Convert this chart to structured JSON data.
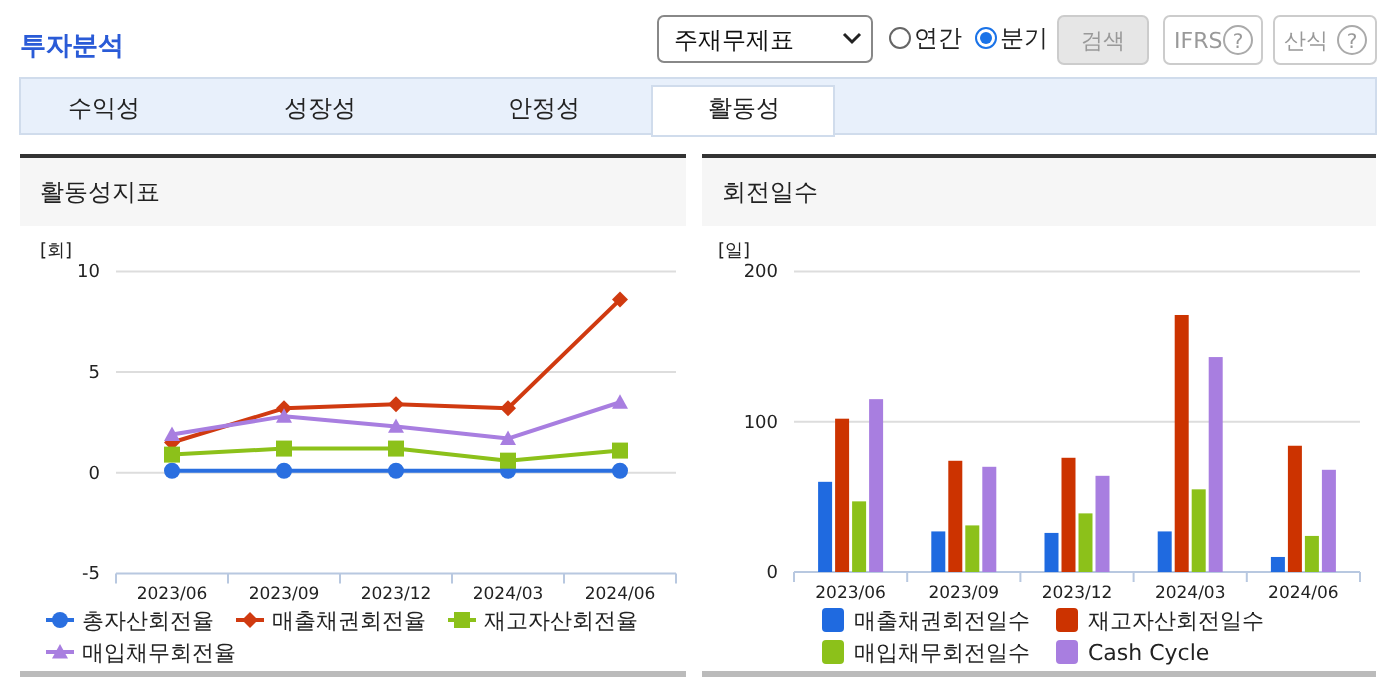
{
  "chart_data": [
    {
      "type": "line",
      "title": "활동성지표",
      "ylabel": "[회]",
      "categories": [
        "2023/06",
        "2023/09",
        "2023/12",
        "2024/03",
        "2024/06"
      ],
      "ylim": [
        -5,
        10
      ],
      "yticks": [
        -5,
        0,
        5,
        10
      ],
      "grid": "y",
      "legend": "bottom",
      "line_style": "solid",
      "annotations": [
        "투자분석",
        "주재무제표",
        "연간",
        "분기",
        "검색",
        "IFRS",
        "산식",
        "수익성",
        "성장성",
        "안정성",
        "활동성",
        "?",
        "?"
      ],
      "series": [
        {
          "name": "총자산회전율",
          "color": "#2a6fe0",
          "marker": "circle",
          "values": [
            0.1,
            0.1,
            0.1,
            0.1,
            0.1
          ]
        },
        {
          "name": "매출채권회전율",
          "color": "#d03a10",
          "marker": "diamond",
          "values": [
            1.5,
            3.2,
            3.4,
            3.2,
            8.6
          ]
        },
        {
          "name": "재고자산회전율",
          "color": "#8cc11a",
          "marker": "square",
          "values": [
            0.9,
            1.2,
            1.2,
            0.6,
            1.1
          ]
        },
        {
          "name": "매입채무회전율",
          "color": "#a87ee0",
          "marker": "triangle",
          "values": [
            1.9,
            2.8,
            2.3,
            1.7,
            3.5
          ]
        }
      ]
    },
    {
      "type": "bar",
      "title": "회전일수",
      "ylabel": "[일]",
      "categories": [
        "2023/06",
        "2023/09",
        "2023/12",
        "2024/03",
        "2024/06"
      ],
      "ylim": [
        0,
        200
      ],
      "yticks": [
        0,
        100,
        200
      ],
      "grid": "y",
      "legend": "bottom",
      "series": [
        {
          "name": "매출채권회전일수",
          "color": "#1f6ae0",
          "values": [
            60,
            27,
            26,
            27,
            10
          ]
        },
        {
          "name": "재고자산회전일수",
          "color": "#cc3300",
          "values": [
            102,
            74,
            76,
            171,
            84
          ]
        },
        {
          "name": "매입채무회전일수",
          "color": "#8cc11a",
          "values": [
            47,
            31,
            39,
            55,
            24
          ]
        },
        {
          "name": "Cash Cycle",
          "color": "#a87ee0",
          "values": [
            115,
            70,
            64,
            143,
            68
          ]
        }
      ]
    }
  ]
}
